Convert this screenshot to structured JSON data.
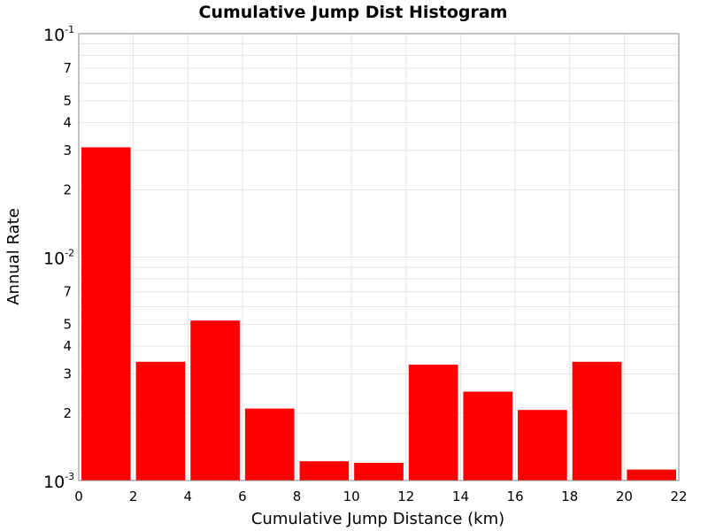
{
  "chart_data": {
    "type": "bar",
    "title": "Cumulative Jump Dist Histogram",
    "xlabel": "Cumulative Jump Distance (km)",
    "ylabel": "Annual Rate",
    "x_ticks": [
      "0",
      "2",
      "4",
      "6",
      "8",
      "10",
      "12",
      "14",
      "16",
      "18",
      "20",
      "22"
    ],
    "xlim": [
      0,
      22
    ],
    "ylim": [
      0.001,
      0.1
    ],
    "y_scale": "log",
    "y_minor_tick_labels": [
      "2",
      "3",
      "4",
      "5",
      "7"
    ],
    "y_decade_labels": [
      {
        "base": "10",
        "exp": "-3",
        "value": 0.001
      },
      {
        "base": "10",
        "exp": "-2",
        "value": 0.01
      },
      {
        "base": "10",
        "exp": "-1",
        "value": 0.1
      }
    ],
    "grid": true,
    "bar_color": "#ff0000",
    "bins": [
      {
        "x0": 0,
        "x1": 2,
        "value": 0.031
      },
      {
        "x0": 2,
        "x1": 4,
        "value": 0.0034
      },
      {
        "x0": 4,
        "x1": 6,
        "value": 0.0052
      },
      {
        "x0": 6,
        "x1": 8,
        "value": 0.0021
      },
      {
        "x0": 8,
        "x1": 10,
        "value": 0.00122
      },
      {
        "x0": 10,
        "x1": 12,
        "value": 0.0012
      },
      {
        "x0": 12,
        "x1": 14,
        "value": 0.0033
      },
      {
        "x0": 14,
        "x1": 16,
        "value": 0.0025
      },
      {
        "x0": 16,
        "x1": 18,
        "value": 0.00207
      },
      {
        "x0": 18,
        "x1": 20,
        "value": 0.0034
      },
      {
        "x0": 20,
        "x1": 22,
        "value": 0.00112
      }
    ]
  }
}
